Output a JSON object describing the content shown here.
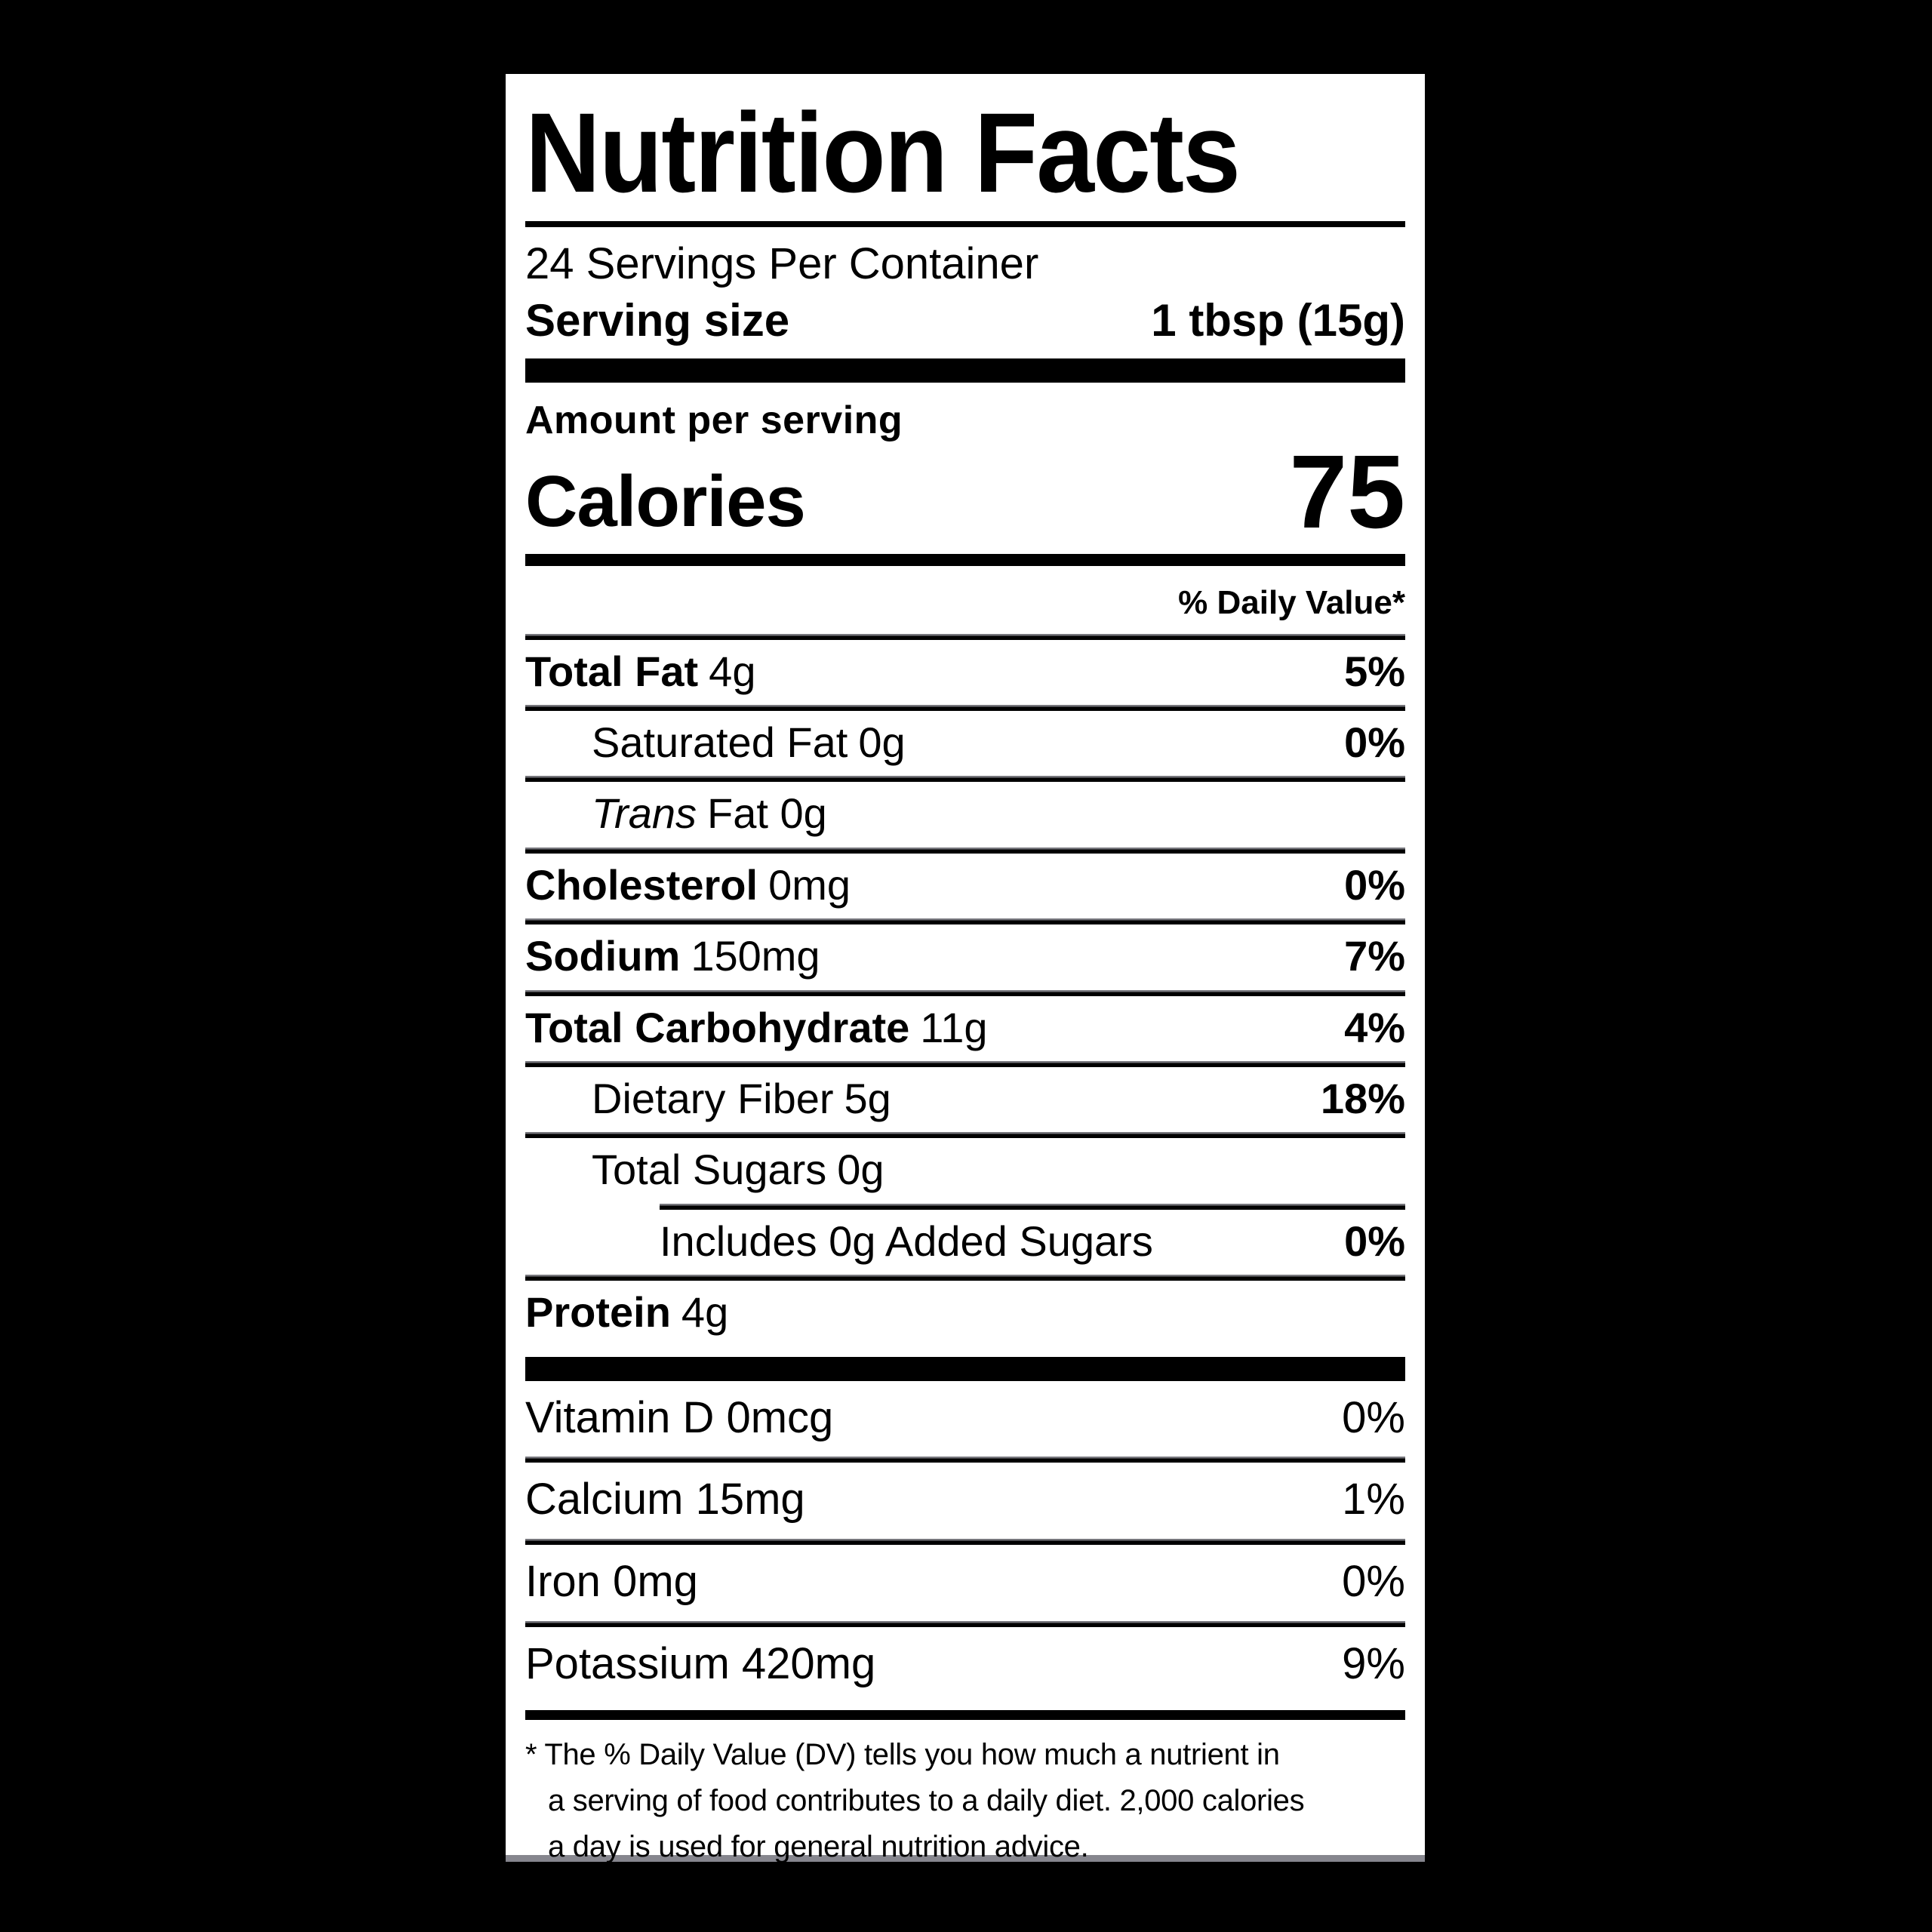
{
  "colors": {
    "page_background": "#000000",
    "label_background": "#ffffff",
    "text": "#000000"
  },
  "label": {
    "title": "Nutrition Facts",
    "servings_per_container": "24 Servings Per Container",
    "serving_size_label": "Serving size",
    "serving_size_value": "1 tbsp (15g)",
    "amount_per_serving": "Amount per serving",
    "calories_label": "Calories",
    "calories_value": "75",
    "daily_value_header": "% Daily Value*",
    "nutrients": [
      {
        "name": "Total Fat",
        "amount": "4g",
        "dv": "5%"
      },
      {
        "name": "Saturated Fat",
        "amount": "0g",
        "dv": "0%"
      },
      {
        "name": "Trans",
        "amount": "Fat 0g",
        "dv": ""
      },
      {
        "name": "Cholesterol",
        "amount": "0mg",
        "dv": "0%"
      },
      {
        "name": "Sodium",
        "amount": "150mg",
        "dv": "7%"
      },
      {
        "name": "Total Carbohydrate",
        "amount": "11g",
        "dv": "4%"
      },
      {
        "name": "Dietary Fiber",
        "amount": "5g",
        "dv": "18%"
      },
      {
        "name": "Total Sugars",
        "amount": "0g",
        "dv": ""
      },
      {
        "name": "Includes 0g Added Sugars",
        "amount": "",
        "dv": "0%"
      },
      {
        "name": "Protein",
        "amount": "4g",
        "dv": ""
      }
    ],
    "micronutrients": [
      {
        "label": "Vitamin D 0mcg",
        "dv": "0%"
      },
      {
        "label": "Calcium 15mg",
        "dv": "1%"
      },
      {
        "label": "Iron 0mg",
        "dv": "0%"
      },
      {
        "label": "Potassium 420mg",
        "dv": "9%"
      }
    ],
    "footnote_lines": [
      "* The % Daily Value (DV) tells you how much a nutrient in",
      "a serving of food contributes to a daily diet. 2,000 calories",
      "a day is used for general nutrition advice."
    ]
  }
}
